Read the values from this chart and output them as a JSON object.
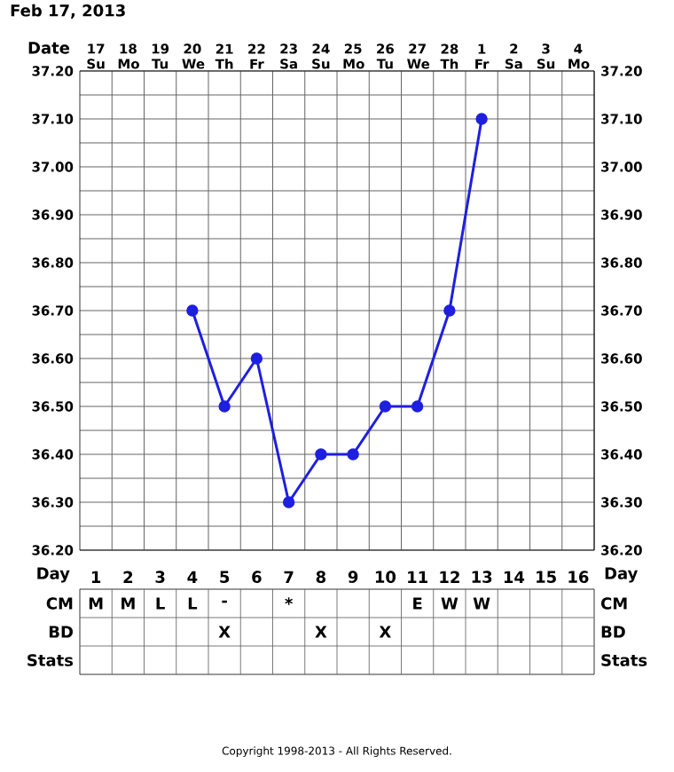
{
  "chart_data": [
    {
      "type": "line",
      "title": "Feb 17, 2013",
      "xlabel": "Date",
      "categories": [
        "17 Su",
        "18 Mo",
        "19 Tu",
        "20 We",
        "21 Th",
        "22 Fr",
        "23 Sa",
        "24 Su",
        "25 Mo",
        "26 Tu",
        "27 We",
        "28 Th",
        "1 Fr",
        "2 Sa",
        "3 Su",
        "4 Mo"
      ],
      "series": [
        {
          "color": "#1f1fe0",
          "values": [
            null,
            null,
            null,
            36.7,
            36.5,
            36.6,
            36.3,
            36.4,
            36.4,
            36.5,
            36.5,
            36.7,
            37.1,
            null,
            null,
            null
          ]
        }
      ],
      "ylim": [
        36.2,
        37.2
      ],
      "yticks": [
        {
          "value": 36.2,
          "label": "36.20"
        },
        {
          "value": 36.3,
          "label": "36.30"
        },
        {
          "value": 36.4,
          "label": "36.40"
        },
        {
          "value": 36.5,
          "label": "36.50"
        },
        {
          "value": 36.6,
          "label": "36.60"
        },
        {
          "value": 36.7,
          "label": "36.70"
        },
        {
          "value": 36.8,
          "label": "36.80"
        },
        {
          "value": 36.9,
          "label": "36.90"
        },
        {
          "value": 37.0,
          "label": "37.00"
        },
        {
          "value": 37.1,
          "label": "37.10"
        },
        {
          "value": 37.2,
          "label": "37.20"
        }
      ],
      "y2lim": [
        36.2,
        37.2
      ],
      "y2ticks": [
        {
          "value": 36.2,
          "label": "36.20"
        },
        {
          "value": 36.3,
          "label": "36.30"
        },
        {
          "value": 36.4,
          "label": "36.40"
        },
        {
          "value": 36.5,
          "label": "36.50"
        },
        {
          "value": 36.6,
          "label": "36.60"
        },
        {
          "value": 36.7,
          "label": "36.70"
        },
        {
          "value": 36.8,
          "label": "36.80"
        },
        {
          "value": 36.9,
          "label": "36.90"
        },
        {
          "value": 37.0,
          "label": "37.00"
        },
        {
          "value": 37.1,
          "label": "37.10"
        },
        {
          "value": 37.2,
          "label": "37.20"
        }
      ],
      "grid": true,
      "marker": "circle",
      "line_style": "solid"
    },
    {
      "type": "heatmap",
      "xlabel": "Day",
      "categories": [
        "1",
        "2",
        "3",
        "4",
        "5",
        "6",
        "7",
        "8",
        "9",
        "10",
        "11",
        "12",
        "13",
        "14",
        "15",
        "16"
      ],
      "y_categories": [
        "CM",
        "BD",
        "Stats"
      ],
      "y2_categories": [
        "CM",
        "BD",
        "Stats"
      ],
      "cells": [
        [
          null,
          null,
          null,
          null,
          null,
          null,
          null,
          null,
          null,
          null,
          null,
          null,
          null,
          null,
          null,
          null
        ],
        [
          null,
          null,
          null,
          null,
          null,
          null,
          null,
          null,
          null,
          null,
          null,
          null,
          null,
          null,
          null,
          null
        ],
        [
          null,
          null,
          null,
          null,
          null,
          null,
          null,
          null,
          null,
          null,
          null,
          null,
          null,
          null,
          null,
          null
        ]
      ],
      "cell_labels": [
        [
          "M",
          "M",
          "L",
          "L",
          "-",
          null,
          "*",
          null,
          null,
          null,
          "E",
          "W",
          "W",
          null,
          null,
          null
        ],
        [
          null,
          null,
          null,
          null,
          "X",
          null,
          null,
          "X",
          null,
          "X",
          null,
          null,
          null,
          null,
          null,
          null
        ],
        [
          null,
          null,
          null,
          null,
          null,
          null,
          null,
          null,
          null,
          null,
          null,
          null,
          null,
          null,
          null,
          null
        ]
      ],
      "annotations": [
        "Copyright 1998-2013 - All Rights Reserved."
      ]
    }
  ]
}
